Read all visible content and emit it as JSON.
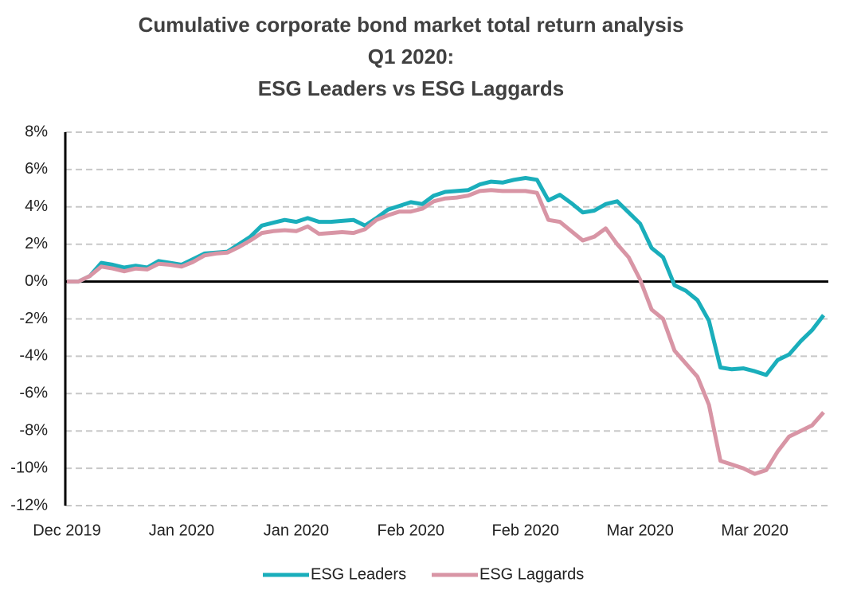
{
  "chart_data": {
    "type": "line",
    "title": [
      "Cumulative corporate bond market total return analysis",
      "Q1 2020:",
      "ESG Leaders vs ESG Laggards"
    ],
    "categories": [
      "Dec 2019",
      null,
      null,
      null,
      null,
      null,
      null,
      null,
      null,
      null,
      "Jan 2020",
      null,
      null,
      null,
      null,
      null,
      null,
      null,
      null,
      null,
      "Jan 2020",
      null,
      null,
      null,
      null,
      null,
      null,
      null,
      null,
      null,
      "Feb 2020",
      null,
      null,
      null,
      null,
      null,
      null,
      null,
      null,
      null,
      "Feb 2020",
      null,
      null,
      null,
      null,
      null,
      null,
      null,
      null,
      null,
      "Mar 2020",
      null,
      null,
      null,
      null,
      null,
      null,
      null,
      null,
      null,
      "Mar 2020",
      null,
      null,
      null,
      null,
      null,
      null
    ],
    "series": [
      {
        "name": "ESG Leaders",
        "color": "#1aaebb",
        "values": [
          0,
          0,
          0.3,
          1.0,
          0.9,
          0.75,
          0.85,
          0.75,
          1.1,
          1.0,
          0.9,
          1.2,
          1.5,
          1.55,
          1.6,
          2.0,
          2.4,
          3.0,
          3.15,
          3.3,
          3.2,
          3.4,
          3.2,
          3.2,
          3.25,
          3.3,
          3.0,
          3.4,
          3.85,
          4.05,
          4.25,
          4.15,
          4.6,
          4.8,
          4.85,
          4.9,
          5.2,
          5.35,
          5.3,
          5.45,
          5.55,
          5.45,
          4.35,
          4.65,
          4.2,
          3.7,
          3.8,
          4.15,
          4.3,
          3.7,
          3.1,
          1.8,
          1.3,
          -0.2,
          -0.5,
          -1.0,
          -2.1,
          -4.6,
          -4.7,
          -4.65,
          -4.8,
          -5.0,
          -4.2,
          -3.9,
          -3.2,
          -2.6,
          -1.8
        ]
      },
      {
        "name": "ESG Laggards",
        "color": "#d895a5",
        "values": [
          0,
          0,
          0.3,
          0.8,
          0.7,
          0.55,
          0.7,
          0.65,
          0.95,
          0.9,
          0.8,
          1.05,
          1.4,
          1.5,
          1.55,
          1.85,
          2.2,
          2.6,
          2.7,
          2.75,
          2.7,
          2.95,
          2.55,
          2.6,
          2.65,
          2.6,
          2.8,
          3.3,
          3.55,
          3.75,
          3.75,
          3.9,
          4.3,
          4.45,
          4.5,
          4.6,
          4.85,
          4.9,
          4.85,
          4.85,
          4.85,
          4.75,
          3.3,
          3.2,
          2.7,
          2.2,
          2.4,
          2.85,
          2.0,
          1.3,
          0.1,
          -1.5,
          -2.0,
          -3.7,
          -4.4,
          -5.1,
          -6.6,
          -9.6,
          -9.8,
          -10.0,
          -10.3,
          -10.1,
          -9.1,
          -8.3,
          -8.0,
          -7.7,
          -7.0
        ]
      }
    ],
    "ylim": [
      -12,
      8
    ],
    "yticks": [
      {
        "value": -12,
        "label": "-12%"
      },
      {
        "value": -10,
        "label": "-10%"
      },
      {
        "value": -8,
        "label": "-8%"
      },
      {
        "value": -6,
        "label": "-6%"
      },
      {
        "value": -4,
        "label": "-4%"
      },
      {
        "value": -2,
        "label": "-2%"
      },
      {
        "value": 0,
        "label": "0%"
      },
      {
        "value": 2,
        "label": "2%"
      },
      {
        "value": 4,
        "label": "4%"
      },
      {
        "value": 6,
        "label": "6%"
      },
      {
        "value": 8,
        "label": "8%"
      }
    ],
    "grid": true,
    "legend": "bottom"
  }
}
